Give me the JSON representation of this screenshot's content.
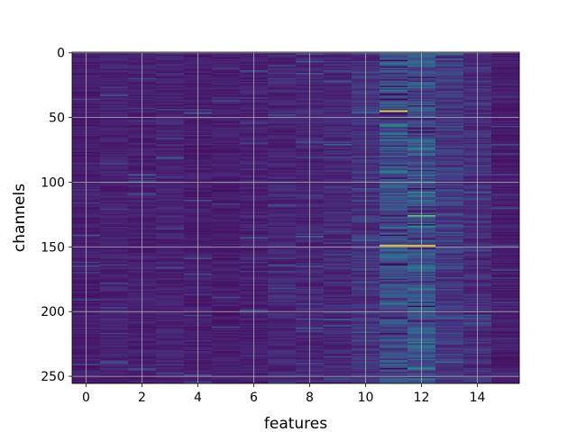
{
  "chart_data": {
    "type": "heatmap",
    "title": "",
    "xlabel": "features",
    "ylabel": "channels",
    "x_columns": 16,
    "y_rows": 256,
    "xlim": [
      -0.5,
      15.5
    ],
    "ylim": [
      255.5,
      -0.5
    ],
    "y_inverted": true,
    "x_ticks": [
      0,
      2,
      4,
      6,
      8,
      10,
      12,
      14
    ],
    "y_ticks": [
      0,
      50,
      100,
      150,
      200,
      250
    ],
    "grid": true,
    "colormap": "viridis",
    "colors": {
      "low": "#440154",
      "background": "#3b2a85",
      "high": "#fde725"
    },
    "column_mean_intensity": [
      0.1,
      0.12,
      0.11,
      0.12,
      0.1,
      0.1,
      0.11,
      0.13,
      0.13,
      0.14,
      0.18,
      0.3,
      0.32,
      0.2,
      0.16,
      0.1
    ],
    "bright_cells": [
      {
        "col": 11,
        "row": 45,
        "value": 1.0
      },
      {
        "col": 11,
        "row": 149,
        "value": 1.0
      },
      {
        "col": 12,
        "row": 149,
        "value": 1.0
      },
      {
        "col": 12,
        "row": 126,
        "value": 0.85
      },
      {
        "col": 12,
        "row": 100,
        "value": 0.55
      },
      {
        "col": 12,
        "row": 244,
        "value": 0.6
      },
      {
        "col": 11,
        "row": 92,
        "value": 0.55
      },
      {
        "col": 11,
        "row": 194,
        "value": 0.5
      },
      {
        "col": 11,
        "row": 135,
        "value": 0.5
      },
      {
        "col": 12,
        "row": 134,
        "value": 0.6
      },
      {
        "col": 12,
        "row": 183,
        "value": 0.5
      },
      {
        "col": 12,
        "row": 194,
        "value": 0.45
      },
      {
        "col": 11,
        "row": 65,
        "value": 0.45
      },
      {
        "col": 13,
        "row": 5,
        "value": 0.45
      },
      {
        "col": 13,
        "row": 239,
        "value": 0.45
      },
      {
        "col": 10,
        "row": 216,
        "value": 0.4
      },
      {
        "col": 8,
        "row": 142,
        "value": 0.4
      },
      {
        "col": 7,
        "row": 164,
        "value": 0.35
      },
      {
        "col": 4,
        "row": 47,
        "value": 0.3
      },
      {
        "col": 11,
        "row": 238,
        "value": 0.45
      }
    ]
  }
}
